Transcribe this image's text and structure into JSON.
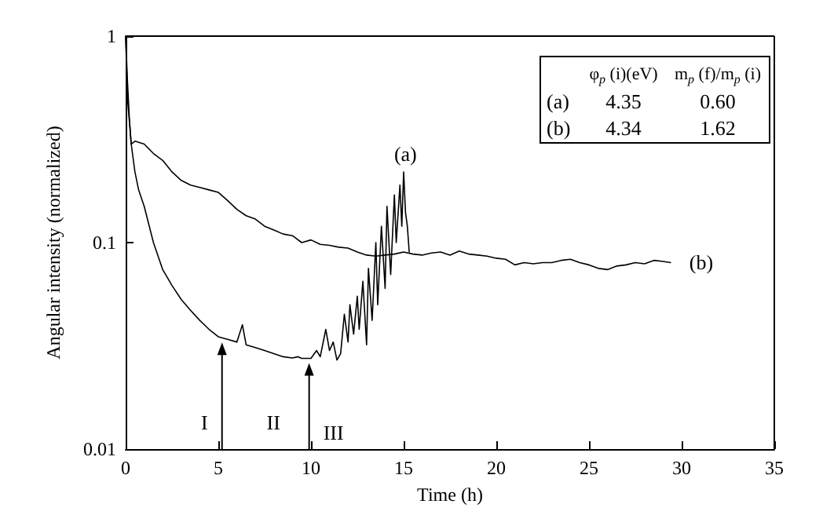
{
  "chart_data": {
    "type": "line",
    "xlabel": "Time (h)",
    "ylabel": "Angular intensity (normalized)",
    "log": "y",
    "xlim": [
      0,
      35
    ],
    "xticks": [
      0,
      5,
      10,
      15,
      20,
      25,
      30,
      35
    ],
    "ylim": [
      0.01,
      1
    ],
    "yticks": [
      0.01,
      0.1,
      1
    ],
    "grid": false,
    "marker": "none",
    "line_style": "solid",
    "series": [
      {
        "color": "#000000",
        "x": [
          0,
          0.1,
          0.2,
          0.3,
          0.5,
          0.7,
          1,
          1.5,
          2,
          2.5,
          3,
          3.5,
          4,
          4.5,
          5,
          5.5,
          6,
          6.3,
          6.5,
          7,
          7.5,
          8,
          8.5,
          9,
          9.3,
          9.5,
          10,
          10.3,
          10.5,
          10.8,
          11,
          11.2,
          11.4,
          11.6,
          11.8,
          12,
          12.1,
          12.3,
          12.5,
          12.6,
          12.8,
          13,
          13.1,
          13.3,
          13.5,
          13.6,
          13.8,
          14,
          14.1,
          14.3,
          14.5,
          14.6,
          14.8,
          14.9,
          15,
          15.1,
          15.2,
          15.3
        ],
        "values": [
          1,
          0.6,
          0.4,
          0.3,
          0.22,
          0.18,
          0.15,
          0.1,
          0.074,
          0.062,
          0.053,
          0.047,
          0.042,
          0.038,
          0.035,
          0.034,
          0.033,
          0.04,
          0.032,
          0.031,
          0.03,
          0.029,
          0.028,
          0.0276,
          0.028,
          0.0275,
          0.0275,
          0.03,
          0.028,
          0.038,
          0.03,
          0.033,
          0.027,
          0.029,
          0.045,
          0.033,
          0.05,
          0.036,
          0.055,
          0.038,
          0.065,
          0.032,
          0.075,
          0.042,
          0.1,
          0.05,
          0.12,
          0.06,
          0.15,
          0.07,
          0.17,
          0.1,
          0.19,
          0.12,
          0.22,
          0.14,
          0.12,
          0.09
        ]
      },
      {
        "name": "(b)",
        "color": "#000000",
        "x": [
          0,
          0.1,
          0.3,
          0.5,
          1,
          1.5,
          2,
          2.5,
          3,
          3.5,
          4,
          4.5,
          5,
          5.5,
          6,
          6.5,
          7,
          7.5,
          8,
          8.5,
          9,
          9.5,
          10,
          10.5,
          11,
          11.5,
          12,
          12.5,
          13,
          13.5,
          14,
          14.5,
          15,
          15.5,
          16,
          16.5,
          17,
          17.5,
          18,
          18.5,
          19,
          19.5,
          20,
          20.5,
          21,
          21.5,
          22,
          22.5,
          23,
          23.5,
          24,
          24.5,
          25,
          25.5,
          26,
          26.5,
          27,
          27.5,
          28,
          28.5,
          29,
          29.4
        ],
        "values": [
          1,
          0.5,
          0.3,
          0.31,
          0.3,
          0.27,
          0.25,
          0.22,
          0.2,
          0.19,
          0.185,
          0.18,
          0.175,
          0.16,
          0.145,
          0.135,
          0.13,
          0.12,
          0.115,
          0.11,
          0.108,
          0.1,
          0.103,
          0.098,
          0.097,
          0.095,
          0.094,
          0.09,
          0.087,
          0.086,
          0.087,
          0.088,
          0.09,
          0.088,
          0.087,
          0.089,
          0.09,
          0.087,
          0.091,
          0.088,
          0.087,
          0.086,
          0.084,
          0.083,
          0.078,
          0.08,
          0.079,
          0.08,
          0.08,
          0.082,
          0.083,
          0.08,
          0.078,
          0.075,
          0.074,
          0.077,
          0.078,
          0.08,
          0.079,
          0.082,
          0.081,
          0.08
        ]
      }
    ],
    "annotations": [
      {
        "text": "I",
        "x": 5.2,
        "y": 0.034
      },
      "II",
      {
        "text": "III",
        "x": 9.9,
        "y": 0.027
      },
      {
        "text": "(a)",
        "x": 15.1,
        "y": 0.21
      },
      "φ$_{p}$ (i)(eV)",
      "m$_{p}$ (f)/m$_{p}$ (i)",
      "(a)",
      "4.35",
      "0.60",
      "(b)",
      "4.34",
      "1.62"
    ]
  }
}
